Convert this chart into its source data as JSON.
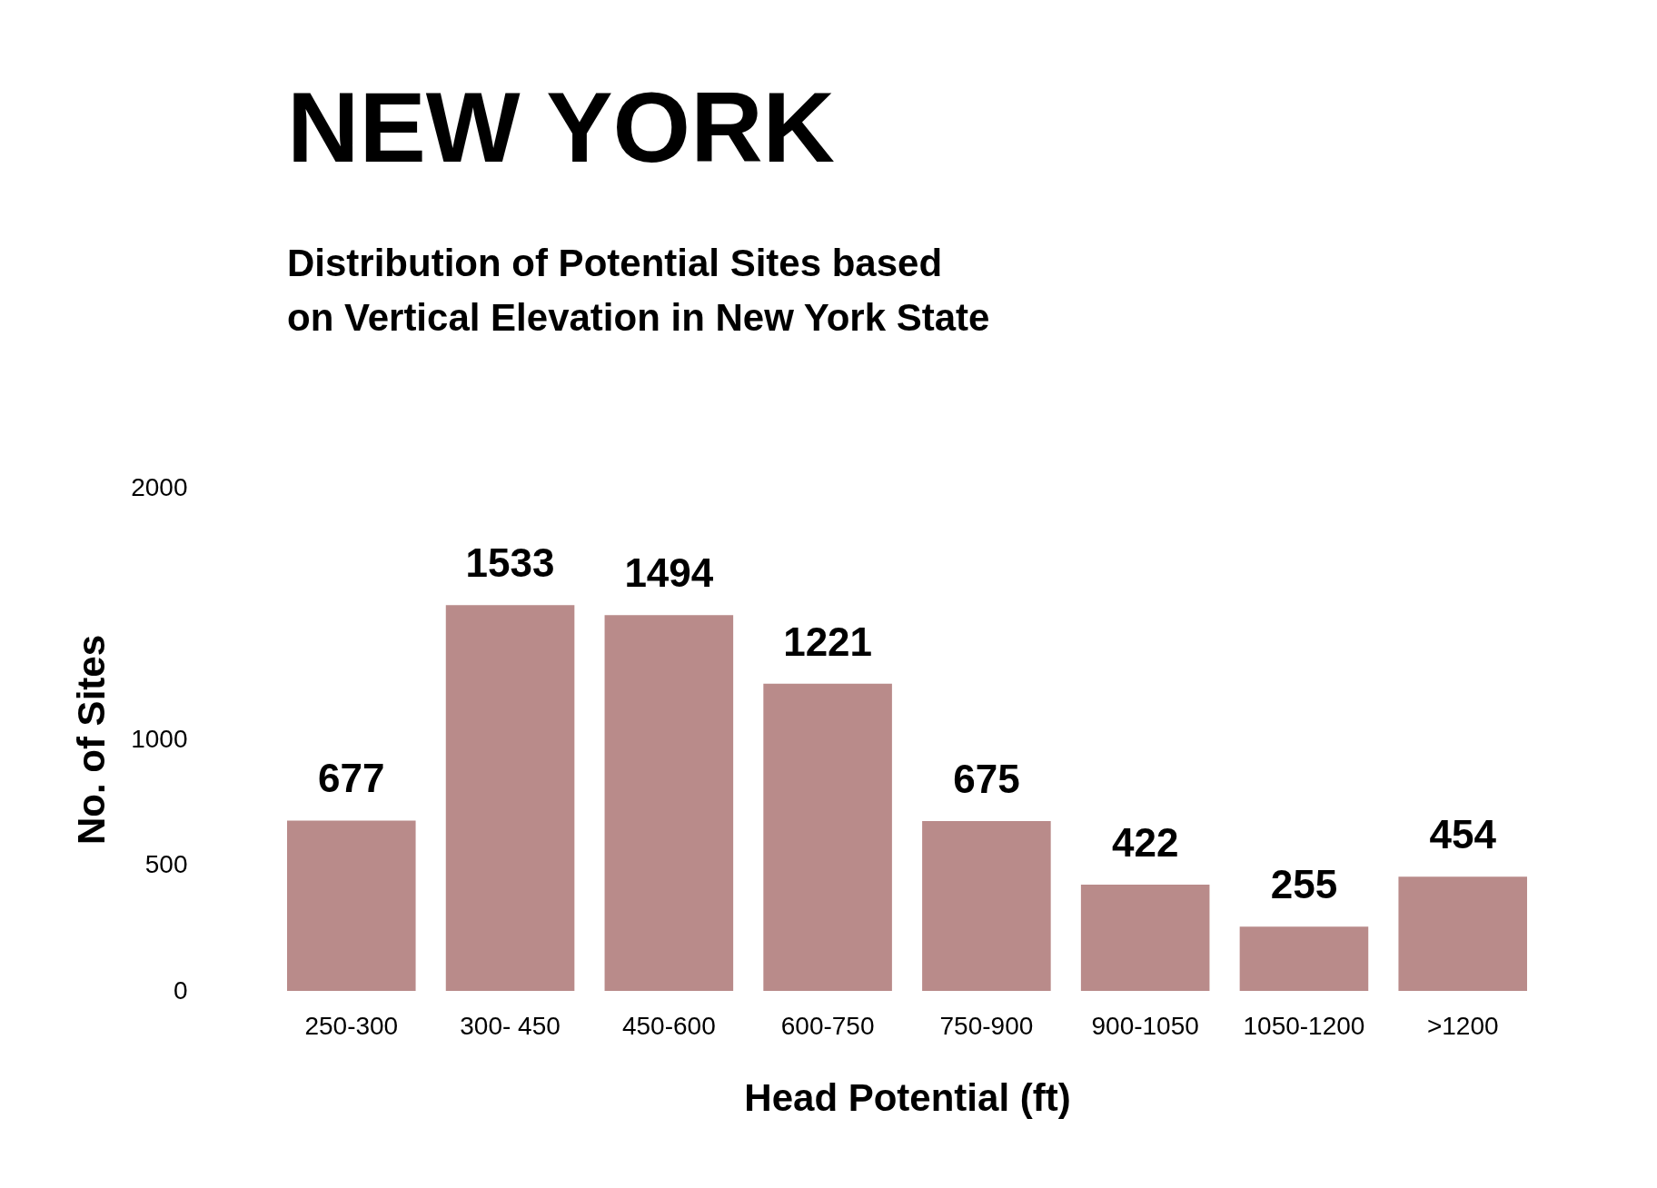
{
  "chart_data": {
    "type": "bar",
    "title": "NEW YORK",
    "subtitle": "Distribution of Potential Sites based on Vertical Elevation in New York State",
    "xlabel": "Head Potential (ft)",
    "ylabel": "No. of Sites",
    "categories": [
      "250-300",
      "300- 450",
      "450-600",
      "600-750",
      "750-900",
      "900-1050",
      "1050-1200",
      ">1200"
    ],
    "values": [
      677,
      1533,
      1494,
      1221,
      675,
      422,
      255,
      454
    ],
    "color": "#b98b8a",
    "ylim": [
      0,
      2000
    ],
    "yticks": [
      0,
      500,
      1000,
      2000
    ],
    "data_labels": true
  }
}
